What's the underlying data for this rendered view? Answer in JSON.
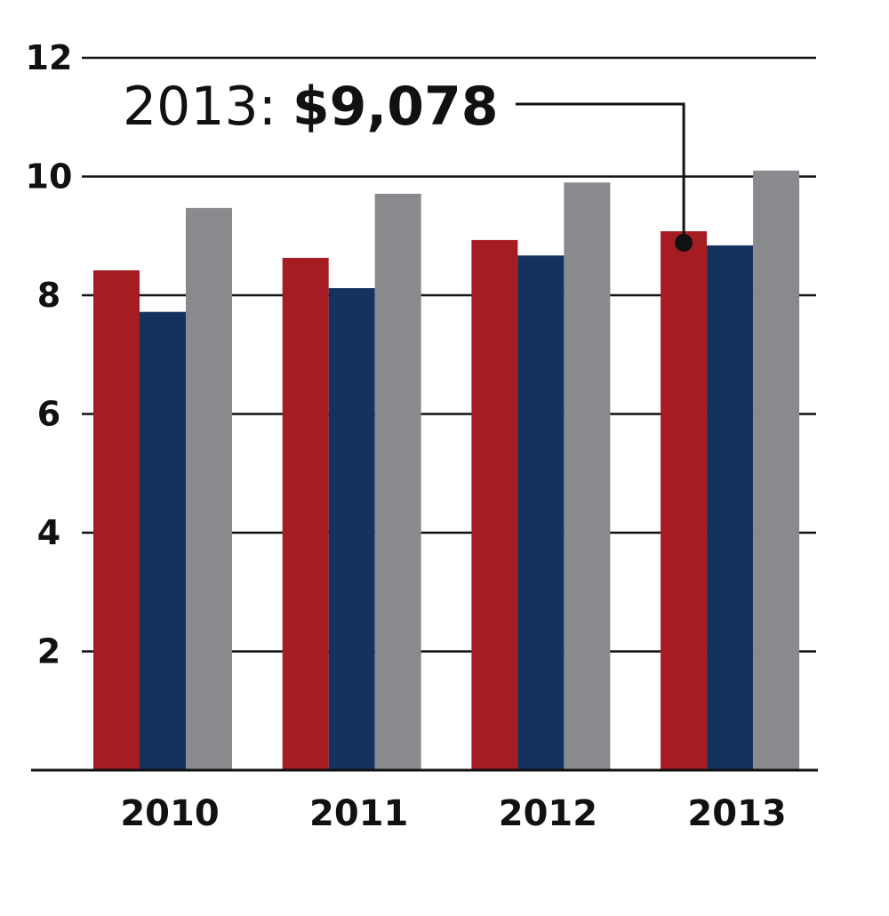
{
  "chart_data": {
    "type": "bar",
    "categories": [
      "2010",
      "2011",
      "2012",
      "2013"
    ],
    "series": [
      {
        "color": "#a51c22",
        "values": [
          8.42,
          8.63,
          8.93,
          9.078
        ]
      },
      {
        "color": "#13335e",
        "values": [
          7.72,
          8.12,
          8.67,
          8.84
        ]
      },
      {
        "color": "#898a8d",
        "values": [
          9.47,
          9.71,
          9.9,
          10.1
        ]
      }
    ],
    "ylim": [
      0,
      12
    ],
    "yticks": [
      2,
      4,
      6,
      8,
      10,
      12
    ],
    "grid": true,
    "annotation": {
      "text": "2013:",
      "value_label": "$9,078"
    }
  }
}
